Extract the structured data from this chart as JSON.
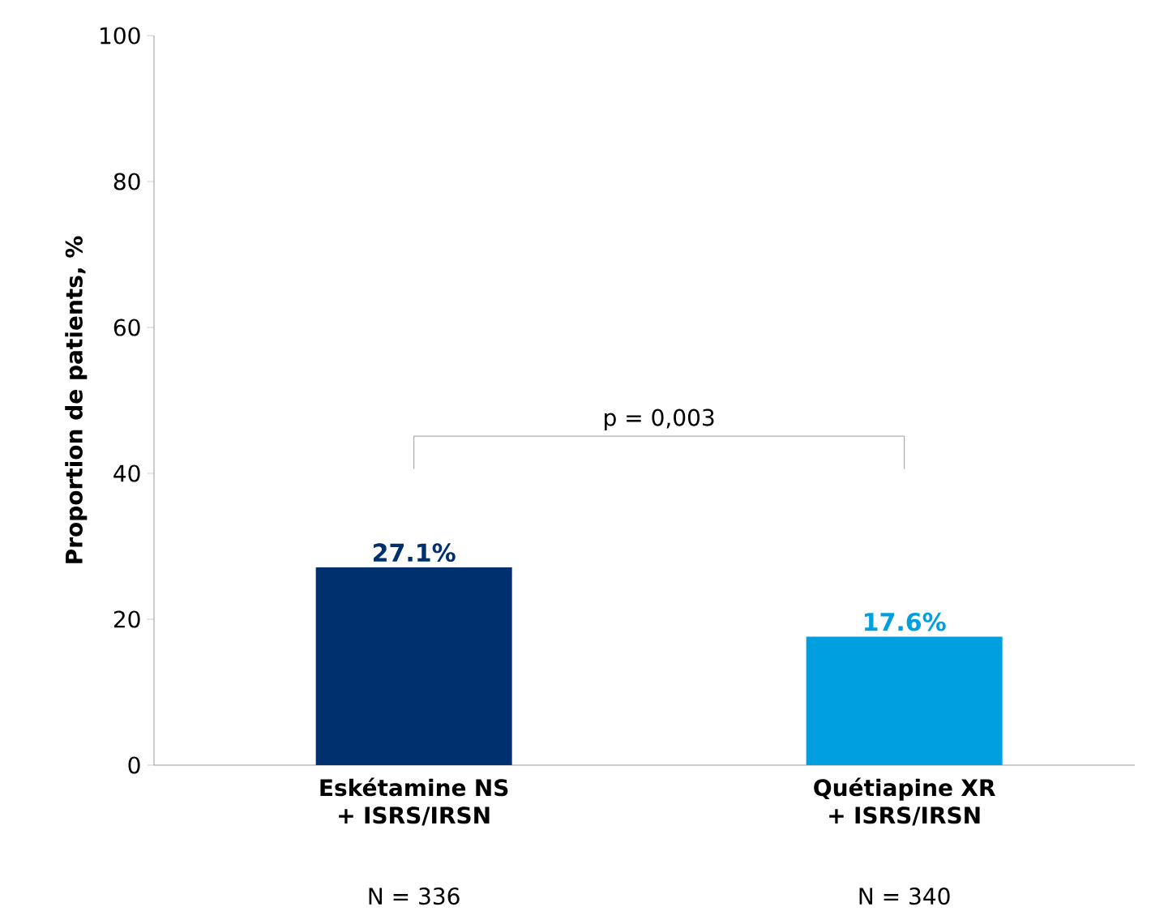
{
  "chart_data": {
    "type": "bar",
    "ylabel": "Proportion de patients, %",
    "categories": [
      "Eskétamine NS + ISRS/IRSN",
      "Quétiapine XR + ISRS/IRSN"
    ],
    "values": [
      27.1,
      17.6
    ],
    "colors": [
      "#00306e",
      "#00a0e0"
    ],
    "value_labels": [
      "27.1%",
      "17.6%"
    ],
    "ylim": [
      0,
      100
    ],
    "yticks": [
      0,
      20,
      40,
      60,
      80,
      100
    ],
    "annotations": [
      "p = 0,003",
      "N = 336",
      "N = 340"
    ]
  }
}
